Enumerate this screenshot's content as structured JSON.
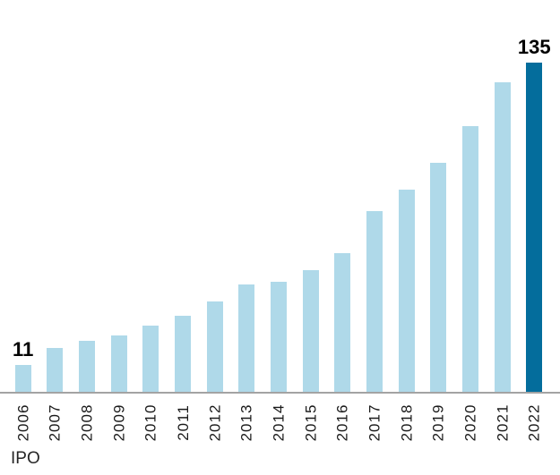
{
  "chart_data": {
    "type": "bar",
    "title": "",
    "series_label": "IPO",
    "categories": [
      "2006",
      "2007",
      "2008",
      "2009",
      "2010",
      "2011",
      "2012",
      "2013",
      "2014",
      "2015",
      "2016",
      "2017",
      "2018",
      "2019",
      "2020",
      "2021",
      "2022"
    ],
    "values": [
      11,
      18,
      21,
      23,
      27,
      31,
      37,
      44,
      45,
      50,
      57,
      74,
      83,
      94,
      109,
      127,
      135
    ],
    "data_labels": {
      "2006": "11",
      "2022": "135"
    },
    "xlabel": "",
    "ylabel": "",
    "ylim": [
      0,
      135
    ],
    "grid": false,
    "legend_position": "none",
    "x_tick_rotation": 90,
    "bar_color": "#AFD9E9",
    "highlight_color": "#046D9C",
    "highlight_index": 16,
    "axis_line_color": "#A3A3A3",
    "label_color": "#000000",
    "tick_color": "#1a1a1a"
  }
}
